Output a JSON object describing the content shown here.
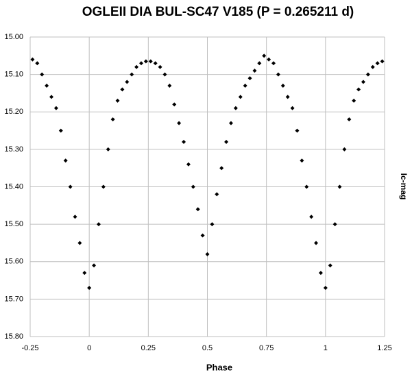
{
  "chart_data": {
    "type": "scatter",
    "title": "OGLEII DIA BUL-SC47 V185 (P = 0.265211 d)",
    "x_label": "Phase",
    "y_label": "Ic-mag",
    "color": "#000000",
    "grid": true,
    "y_inverted": true,
    "xlim": [
      -0.25,
      1.25
    ],
    "xticks": [
      -0.25,
      0,
      0.25,
      0.5,
      0.75,
      1,
      1.25
    ],
    "ylim": [
      15.8,
      15.0
    ],
    "yticks": [
      {
        "value": 15.0,
        "label": "15.00"
      },
      {
        "value": 15.1,
        "label": "15.10"
      },
      {
        "value": 15.2,
        "label": "15.20"
      },
      {
        "value": 15.3,
        "label": "15.30"
      },
      {
        "value": 15.4,
        "label": "15.40"
      },
      {
        "value": 15.5,
        "label": "15.50"
      },
      {
        "value": 15.6,
        "label": "15.60"
      },
      {
        "value": 15.7,
        "label": "15.70"
      },
      {
        "value": 15.8,
        "label": "15.80"
      }
    ],
    "x": [
      -0.24,
      -0.22,
      -0.2,
      -0.18,
      -0.16,
      -0.14,
      -0.12,
      -0.1,
      -0.08,
      -0.06,
      -0.04,
      -0.02,
      0,
      0.02,
      0.04,
      0.06,
      0.08,
      0.1,
      0.12,
      0.14,
      0.16,
      0.18,
      0.2,
      0.22,
      0.24,
      0.26,
      0.28,
      0.3,
      0.32,
      0.34,
      0.36,
      0.38,
      0.4,
      0.42,
      0.44,
      0.46,
      0.48,
      0.5,
      0.52,
      0.54,
      0.56,
      0.58,
      0.6,
      0.62,
      0.64,
      0.66,
      0.68,
      0.7,
      0.72,
      0.74,
      0.76,
      0.78,
      0.8,
      0.82,
      0.84,
      0.86,
      0.88,
      0.9,
      0.92,
      0.94,
      0.96,
      0.98,
      1,
      1.02,
      1.04,
      1.06,
      1.08,
      1.1,
      1.12,
      1.14,
      1.16,
      1.18,
      1.2,
      1.22,
      1.24
    ],
    "values": [
      15.06,
      15.07,
      15.1,
      15.13,
      15.16,
      15.19,
      15.25,
      15.33,
      15.4,
      15.48,
      15.55,
      15.63,
      15.67,
      15.61,
      15.5,
      15.4,
      15.3,
      15.22,
      15.17,
      15.14,
      15.12,
      15.1,
      15.08,
      15.07,
      15.065,
      15.065,
      15.07,
      15.08,
      15.1,
      15.13,
      15.18,
      15.23,
      15.28,
      15.34,
      15.4,
      15.46,
      15.53,
      15.58,
      15.5,
      15.42,
      15.35,
      15.28,
      15.23,
      15.19,
      15.16,
      15.13,
      15.11,
      15.09,
      15.07,
      15.05,
      15.06,
      15.07,
      15.1,
      15.13,
      15.16,
      15.19,
      15.25,
      15.33,
      15.4,
      15.48,
      15.55,
      15.63,
      15.67,
      15.61,
      15.5,
      15.4,
      15.3,
      15.22,
      15.17,
      15.14,
      15.12,
      15.1,
      15.08,
      15.07,
      15.065
    ]
  }
}
